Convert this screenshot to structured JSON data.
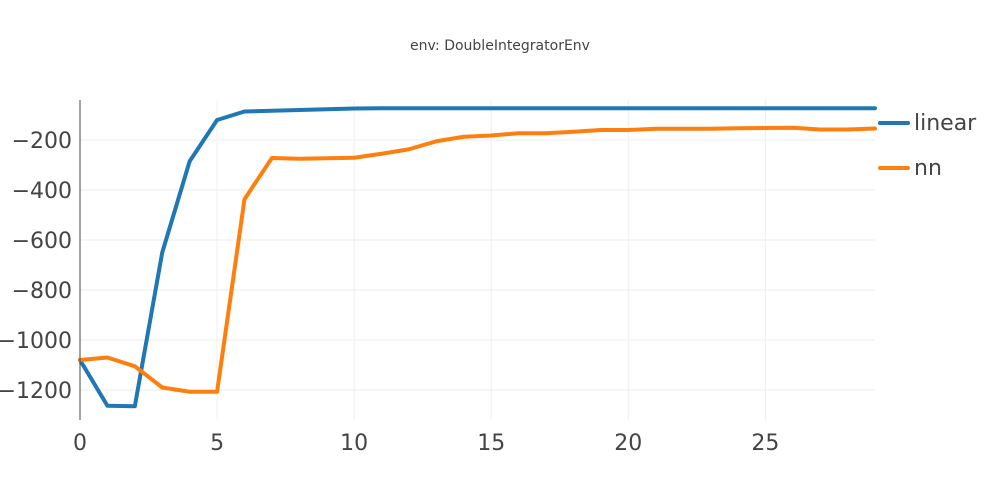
{
  "chart_data": {
    "type": "line",
    "title": "env: DoubleIntegratorEnv",
    "xlim": [
      0,
      29
    ],
    "ylim": [
      -1320,
      -40
    ],
    "xticks": [
      0,
      5,
      10,
      15,
      20,
      25
    ],
    "yticks": [
      -1200,
      -1000,
      -800,
      -600,
      -400,
      -200
    ],
    "ytick_labels": [
      "−1200",
      "−1000",
      "−800",
      "−600",
      "−400",
      "−200"
    ],
    "grid": true,
    "legend_position": "right",
    "series": [
      {
        "name": "linear",
        "color": "#1f77b4",
        "x": [
          0,
          1,
          2,
          3,
          4,
          5,
          6,
          7,
          8,
          9,
          10,
          11,
          12,
          13,
          14,
          15,
          16,
          17,
          18,
          19,
          20,
          21,
          22,
          23,
          24,
          25,
          26,
          27,
          28,
          29
        ],
        "y": [
          -1080,
          -1263,
          -1265,
          -650,
          -285,
          -120,
          -86,
          -83,
          -80,
          -77,
          -74,
          -73,
          -73,
          -73,
          -73,
          -73,
          -73,
          -73,
          -73,
          -73,
          -73,
          -73,
          -73,
          -73,
          -73,
          -73,
          -73,
          -73,
          -73,
          -73
        ]
      },
      {
        "name": "nn",
        "color": "#ff7f0e",
        "x": [
          0,
          1,
          2,
          3,
          4,
          5,
          6,
          7,
          8,
          9,
          10,
          11,
          12,
          13,
          14,
          15,
          16,
          17,
          18,
          19,
          20,
          21,
          22,
          23,
          24,
          25,
          26,
          27,
          28,
          29
        ],
        "y": [
          -1080,
          -1070,
          -1105,
          -1190,
          -1207,
          -1207,
          -437,
          -272,
          -275,
          -273,
          -271,
          -255,
          -237,
          -205,
          -187,
          -182,
          -173,
          -173,
          -167,
          -160,
          -160,
          -155,
          -155,
          -155,
          -153,
          -152,
          -151,
          -158,
          -158,
          -154
        ]
      }
    ]
  }
}
